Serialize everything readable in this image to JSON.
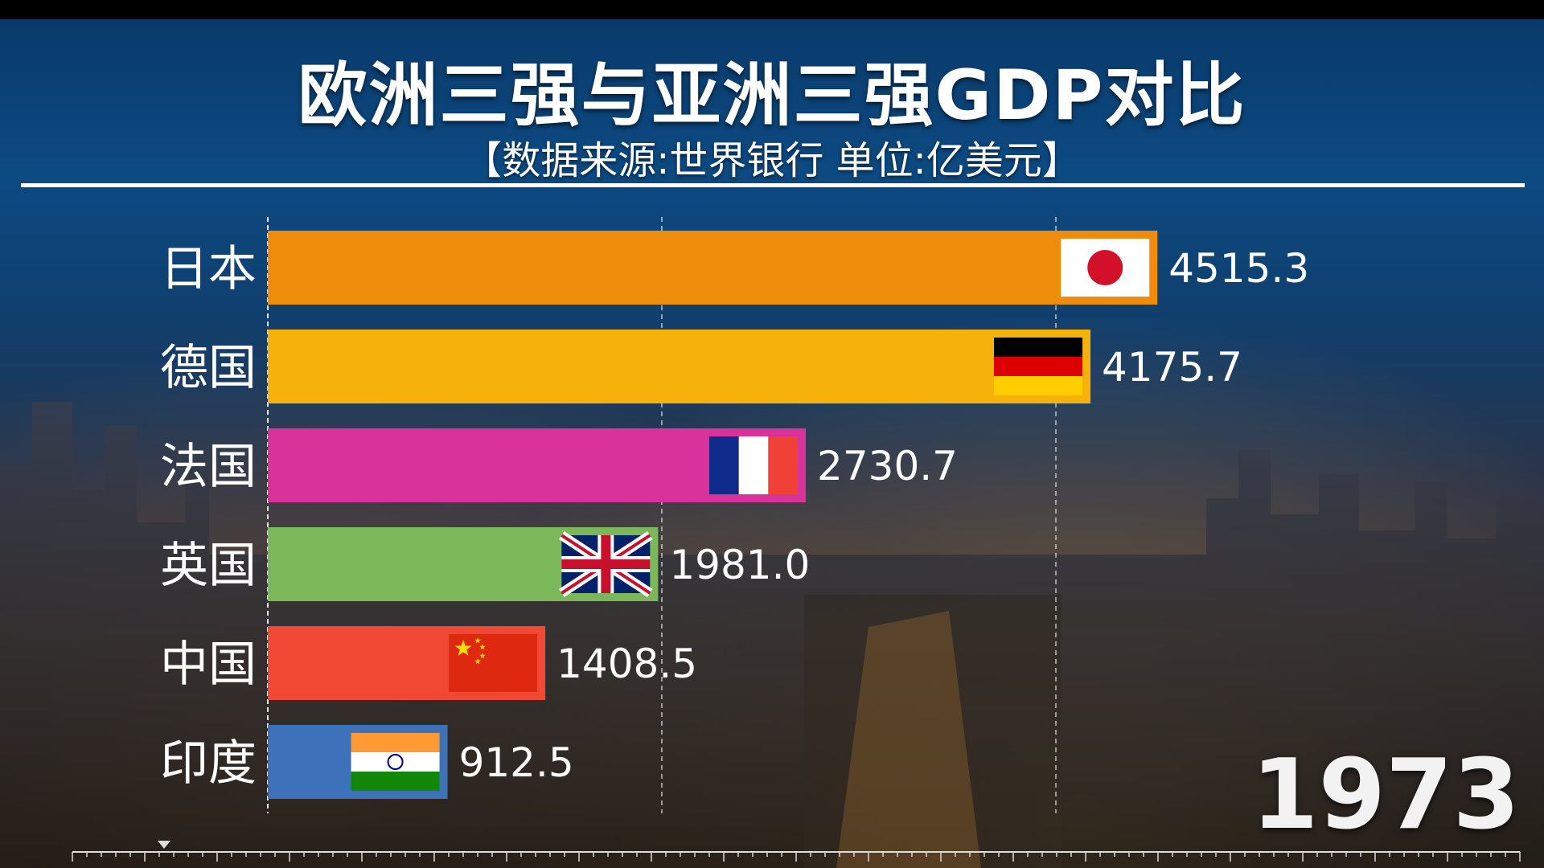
{
  "header": {
    "title": "欧洲三强与亚洲三强GDP对比",
    "subtitle": "【数据来源:世界银行 单位:亿美元】"
  },
  "year": "1973",
  "chart_data": {
    "type": "bar",
    "orientation": "horizontal",
    "title": "欧洲三强与亚洲三强GDP对比",
    "subtitle": "【数据来源:世界银行 单位:亿美元】",
    "categories": [
      "日本",
      "德国",
      "法国",
      "英国",
      "中国",
      "印度"
    ],
    "values": [
      4515.3,
      4175.7,
      2730.7,
      1981.0,
      1408.5,
      912.5
    ],
    "value_labels": [
      "4515.3",
      "4175.7",
      "2730.7",
      "1981.0",
      "1408.5",
      "912.5"
    ],
    "colors": [
      "#f08c0c",
      "#f6b20a",
      "#d9329a",
      "#7ab85a",
      "#f14a34",
      "#3d72bb"
    ],
    "flags": [
      "japan-flag",
      "germany-flag",
      "france-flag",
      "uk-flag",
      "china-flag",
      "india-flag"
    ],
    "xlim": [
      0,
      5000
    ],
    "gridlines": [
      2000,
      4000
    ],
    "grid": true
  }
}
